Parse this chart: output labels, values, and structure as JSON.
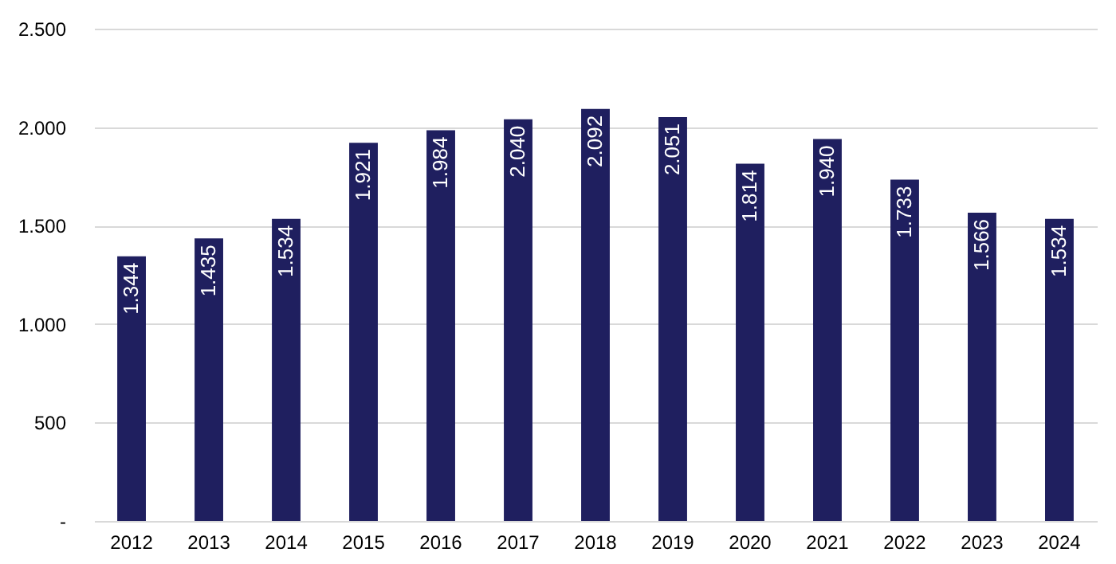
{
  "chart_data": {
    "type": "bar",
    "categories": [
      "2012",
      "2013",
      "2014",
      "2015",
      "2016",
      "2017",
      "2018",
      "2019",
      "2020",
      "2021",
      "2022",
      "2023",
      "2024"
    ],
    "values": [
      1344,
      1435,
      1534,
      1921,
      1984,
      2040,
      2092,
      2051,
      1814,
      1940,
      1733,
      1566,
      1534
    ],
    "value_labels": [
      "1.344",
      "1.435",
      "1.534",
      "1.921",
      "1.984",
      "2.040",
      "2.092",
      "2.051",
      "1.814",
      "1.940",
      "1.733",
      "1.566",
      "1.534"
    ],
    "color": "#1f1f5f",
    "ylim": [
      0,
      2500
    ],
    "yticks": [
      {
        "value": 0,
        "label": "-"
      },
      500,
      {
        "value": 1000,
        "label": "1.000"
      },
      {
        "value": 1500,
        "label": "1.500"
      },
      {
        "value": 2000,
        "label": "2.000"
      },
      {
        "value": 2500,
        "label": "2.500"
      }
    ],
    "grid": "y"
  }
}
